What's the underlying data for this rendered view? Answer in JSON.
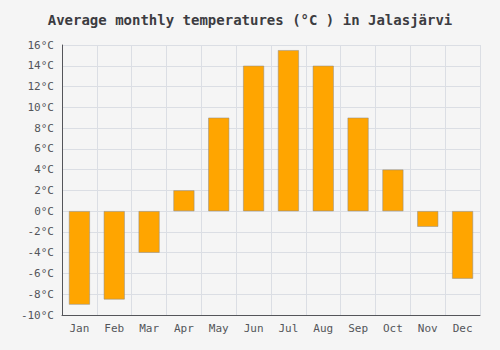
{
  "chart_data": {
    "type": "bar",
    "title": "Average monthly temperatures (°C ) in Jalasjärvi",
    "categories": [
      "Jan",
      "Feb",
      "Mar",
      "Apr",
      "May",
      "Jun",
      "Jul",
      "Aug",
      "Sep",
      "Oct",
      "Nov",
      "Dec"
    ],
    "values": [
      -9.0,
      -8.5,
      -4.0,
      2.0,
      9.0,
      14.0,
      15.5,
      14.0,
      9.0,
      4.0,
      -1.5,
      -6.5
    ],
    "color": "#FFA500",
    "ylim": [
      -10,
      16
    ],
    "yticks": [
      {
        "value": -10,
        "label": "-10°C"
      },
      {
        "value": -8,
        "label": "-8°C"
      },
      {
        "value": -6,
        "label": "-6°C"
      },
      {
        "value": -4,
        "label": "-4°C"
      },
      {
        "value": -2,
        "label": "-2°C"
      },
      {
        "value": 0,
        "label": "0°C"
      },
      {
        "value": 2,
        "label": "2°C"
      },
      {
        "value": 4,
        "label": "4°C"
      },
      {
        "value": 6,
        "label": "6°C"
      },
      {
        "value": 8,
        "label": "8°C"
      },
      {
        "value": 10,
        "label": "10°C"
      },
      {
        "value": 12,
        "label": "12°C"
      },
      {
        "value": 14,
        "label": "14°C"
      },
      {
        "value": 16,
        "label": "16°C"
      }
    ],
    "grid": true
  }
}
